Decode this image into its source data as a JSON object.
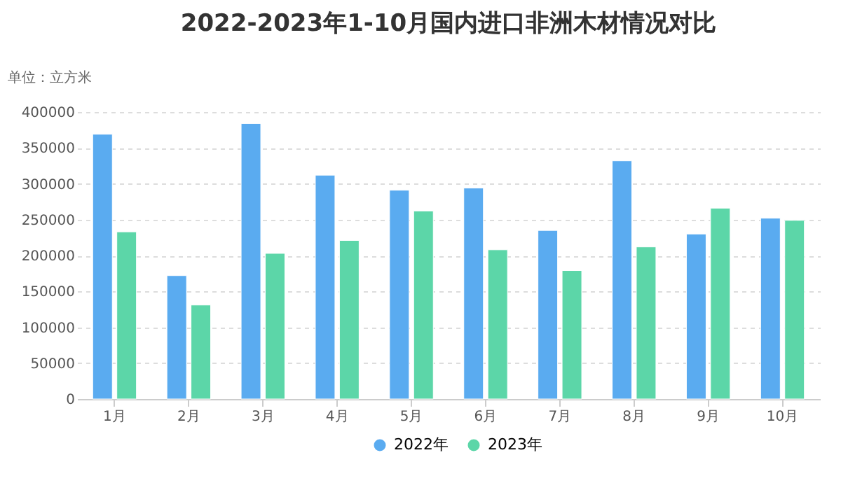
{
  "chart_data": {
    "type": "bar",
    "title": "2022-2023年1-10月国内进口非洲木材情况对比",
    "ylabel": "单位：立方米",
    "categories": [
      "1月",
      "2月",
      "3月",
      "4月",
      "5月",
      "6月",
      "7月",
      "8月",
      "9月",
      "10月"
    ],
    "series": [
      {
        "name": "2022年",
        "color": "#5aabf0",
        "values": [
          369000,
          172000,
          384000,
          312000,
          291000,
          294000,
          235000,
          332000,
          230000,
          252000
        ]
      },
      {
        "name": "2023年",
        "color": "#5cd6a8",
        "values": [
          233000,
          131000,
          203000,
          221000,
          262000,
          208000,
          179000,
          212000,
          266000,
          249000
        ]
      }
    ],
    "ylim": [
      0,
      400000
    ],
    "yticks": [
      0,
      50000,
      100000,
      150000,
      200000,
      250000,
      300000,
      350000,
      400000
    ],
    "grid": "y",
    "legend": "bottom"
  }
}
